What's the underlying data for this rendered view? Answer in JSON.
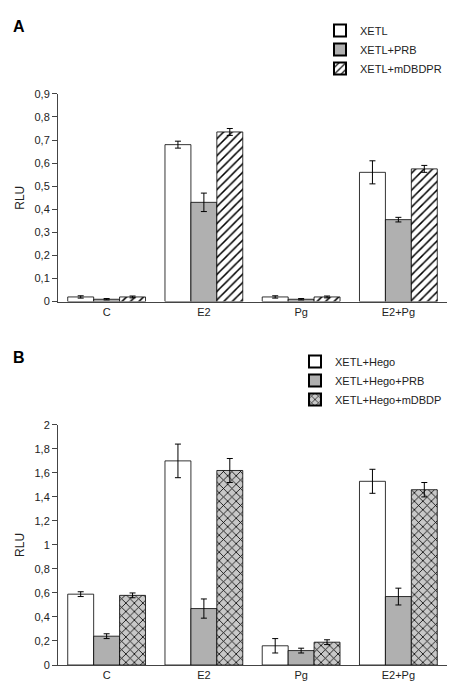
{
  "chart_data": [
    {
      "type": "bar",
      "title": "A",
      "categories": [
        "C",
        "E2",
        "Pg",
        "E2+Pg"
      ],
      "series": [
        {
          "name": "XETL",
          "color": "white",
          "values": [
            0.02,
            0.68,
            0.02,
            0.56
          ],
          "errors": [
            0.005,
            0.015,
            0.005,
            0.05
          ]
        },
        {
          "name": "XETL+PRB",
          "color": "#b0b0b0",
          "values": [
            0.01,
            0.43,
            0.01,
            0.355
          ],
          "errors": [
            0.003,
            0.04,
            0.003,
            0.01
          ]
        },
        {
          "name": "XETL+mDBDPR",
          "color": "white",
          "marker": "diagonal",
          "values": [
            0.02,
            0.735,
            0.02,
            0.575
          ],
          "errors": [
            0.004,
            0.015,
            0.004,
            0.015
          ]
        }
      ],
      "ylabel": "RLU",
      "ylim": [
        0,
        0.9
      ],
      "yticks": [
        0,
        {
          "value": 0.1,
          "label": "0,1"
        },
        {
          "value": 0.2,
          "label": "0,2"
        },
        {
          "value": 0.3,
          "label": "0,3"
        },
        {
          "value": 0.4,
          "label": "0,4"
        },
        {
          "value": 0.5,
          "label": "0,5"
        },
        {
          "value": 0.6,
          "label": "0,6"
        },
        {
          "value": 0.7,
          "label": "0,7"
        },
        {
          "value": 0.8,
          "label": "0,8"
        },
        {
          "value": 0.9,
          "label": "0,9"
        }
      ],
      "grid": false,
      "legend": "upper right"
    },
    {
      "type": "bar",
      "title": "B",
      "categories": [
        "C",
        "E2",
        "Pg",
        "E2+Pg"
      ],
      "series": [
        {
          "name": "XETL+Hego",
          "color": "white",
          "values": [
            0.59,
            1.7,
            0.16,
            1.53
          ],
          "errors": [
            0.02,
            0.14,
            0.06,
            0.1
          ]
        },
        {
          "name": "XETL+Hego+PRB",
          "color": "#b0b0b0",
          "values": [
            0.24,
            0.47,
            0.12,
            0.57
          ],
          "errors": [
            0.02,
            0.08,
            0.02,
            0.07
          ]
        },
        {
          "name": "XETL+Hego+mDBDP",
          "color": "#c8c8c8",
          "marker": "cross",
          "values": [
            0.58,
            1.62,
            0.19,
            1.46
          ],
          "errors": [
            0.02,
            0.1,
            0.02,
            0.06
          ]
        }
      ],
      "ylabel": "RLU",
      "ylim": [
        0,
        2.0
      ],
      "yticks": [
        0,
        {
          "value": 0.2,
          "label": "0,2"
        },
        {
          "value": 0.4,
          "label": "0,4"
        },
        {
          "value": 0.6,
          "label": "0,6"
        },
        {
          "value": 0.8,
          "label": "0,8"
        },
        1,
        {
          "value": 1.2,
          "label": "1,2"
        },
        {
          "value": 1.4,
          "label": "1,4"
        },
        {
          "value": 1.6,
          "label": "1,6"
        },
        {
          "value": 1.8,
          "label": "1,8"
        },
        2
      ],
      "grid": false,
      "legend": "upper right"
    }
  ]
}
